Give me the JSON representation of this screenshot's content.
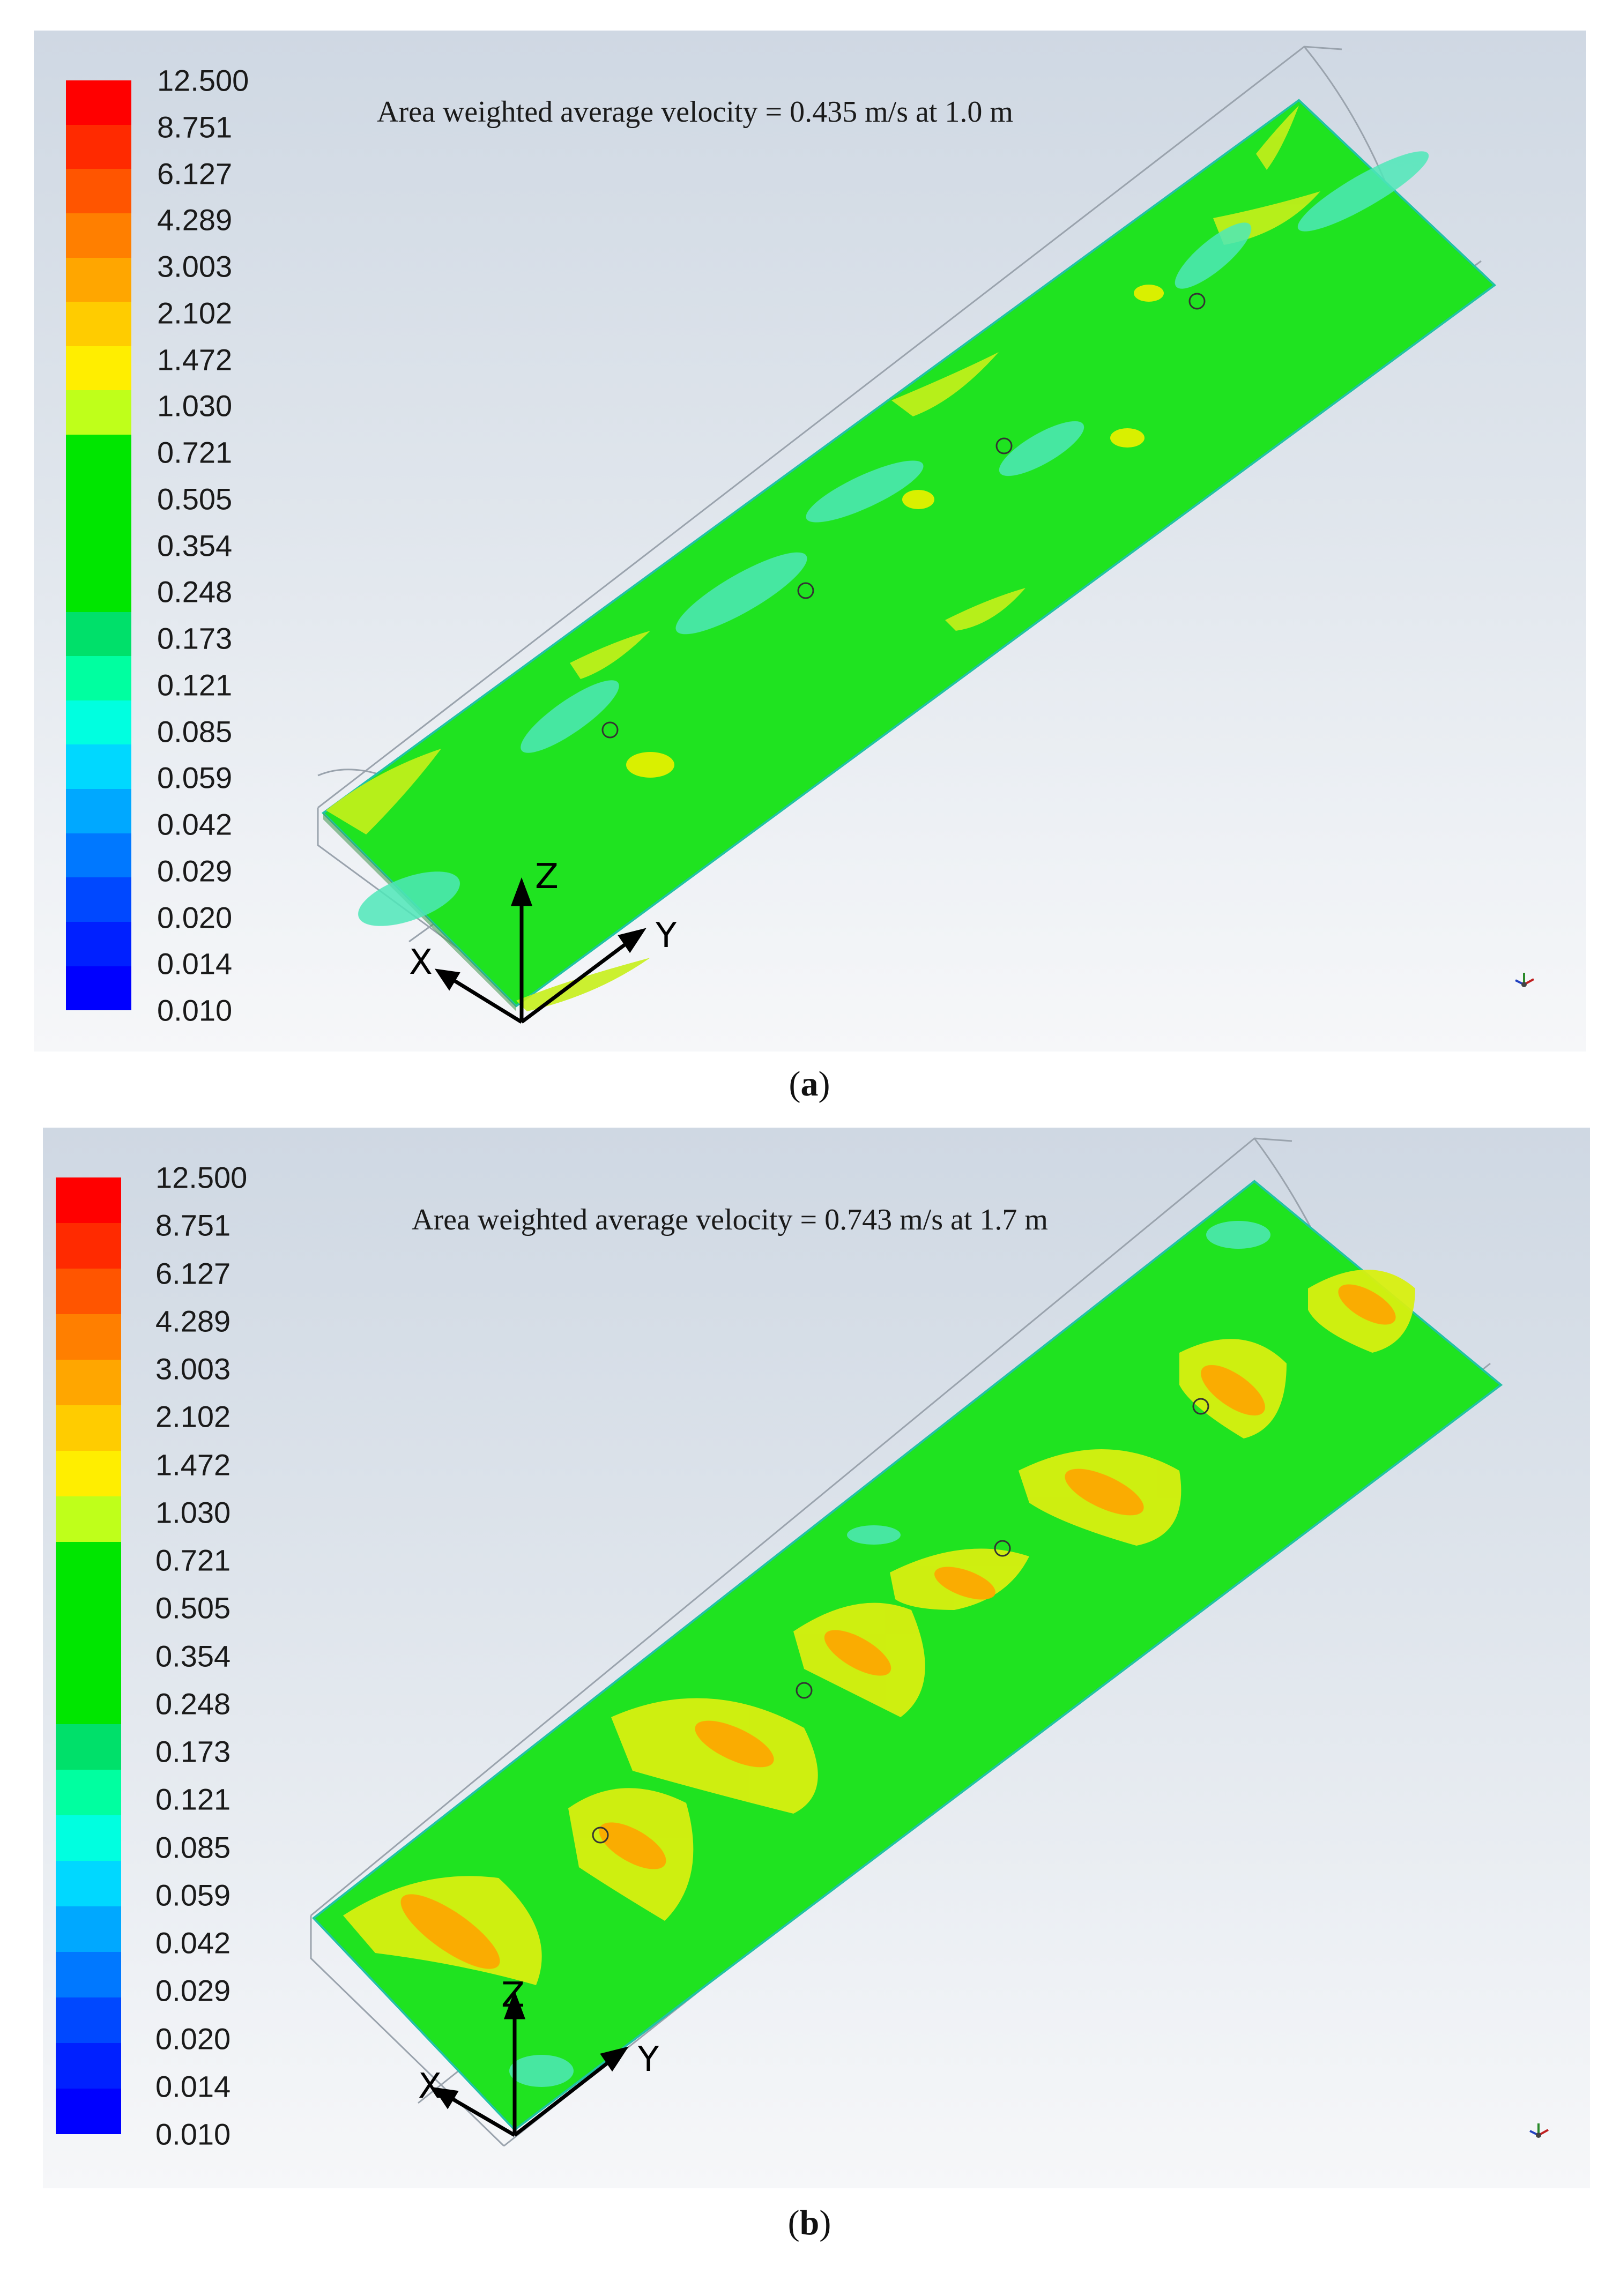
{
  "colorbar": {
    "labels": [
      "12.500",
      "8.751",
      "6.127",
      "4.289",
      "3.003",
      "2.102",
      "1.472",
      "1.030",
      "0.721",
      "0.505",
      "0.354",
      "0.248",
      "0.173",
      "0.121",
      "0.085",
      "0.059",
      "0.042",
      "0.029",
      "0.020",
      "0.014",
      "0.010"
    ],
    "colors": [
      "#ff0000",
      "#ff2a00",
      "#ff5500",
      "#ff7f00",
      "#ffa600",
      "#ffcc00",
      "#ffee00",
      "#bfff1a",
      "#00e600",
      "#00e600",
      "#00e600",
      "#00e600",
      "#00e06a",
      "#00ffa0",
      "#00ffe0",
      "#00d8ff",
      "#00a8ff",
      "#0078ff",
      "#0048ff",
      "#0020ff",
      "#0000ff"
    ]
  },
  "panel_a": {
    "annotation": "Area weighted average velocity = 0.435 m/s at 1.0 m",
    "caption_letter": "a",
    "axes": {
      "x": "X",
      "y": "Y",
      "z": "Z"
    }
  },
  "panel_b": {
    "annotation": "Area weighted average velocity = 0.743 m/s at 1.7 m",
    "caption_letter": "b",
    "axes": {
      "x": "X",
      "y": "Y",
      "z": "Z"
    }
  },
  "caption_paren_open": "(",
  "caption_paren_close": ")"
}
